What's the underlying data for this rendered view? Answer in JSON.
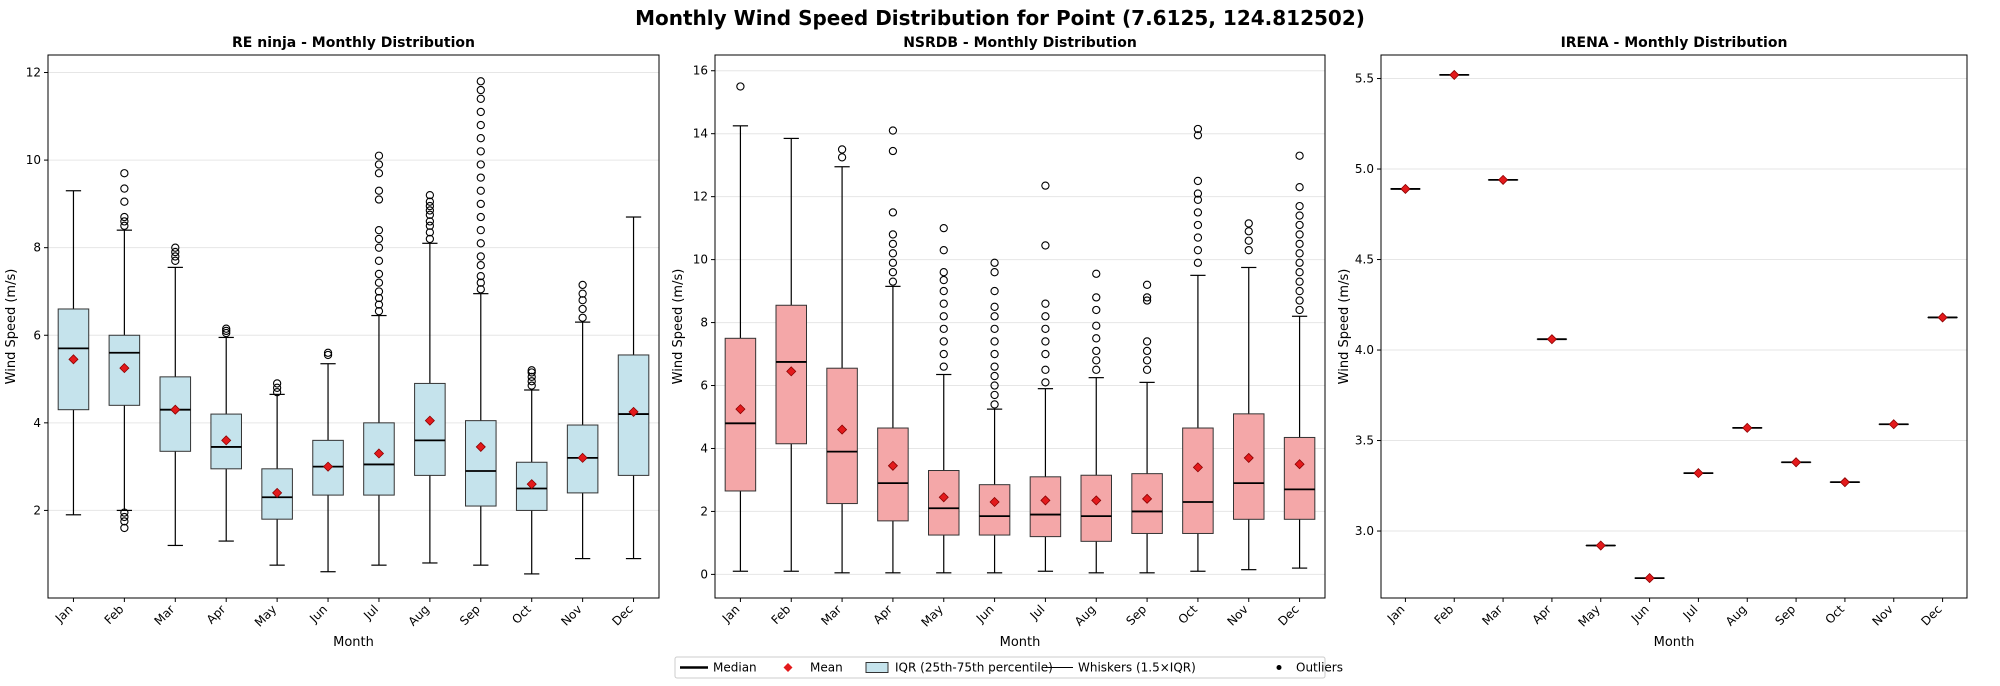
{
  "title": "Monthly Wind Speed Distribution for Point (7.6125, 124.812502)",
  "colors": {
    "re_box": "#c5e3ec",
    "nsrdb_box": "#f4a7a8",
    "mean": "#e31a1c",
    "grid": "#e6e6e6"
  },
  "legend": {
    "items": [
      {
        "label": "Median",
        "kind": "median-line"
      },
      {
        "label": "Mean",
        "kind": "mean-diamond"
      },
      {
        "label": "IQR (25th-75th percentile)",
        "kind": "iqr-box"
      },
      {
        "label": "Whiskers (1.5×IQR)",
        "kind": "whisker-line"
      },
      {
        "label": "Outliers",
        "kind": "outlier-dot"
      }
    ]
  },
  "chart_data": [
    {
      "type": "box",
      "title": "RE ninja - Monthly Distribution",
      "xlabel": "Month",
      "ylabel": "Wind Speed (m/s)",
      "ylim": [
        0.0,
        12.4
      ],
      "yticks": [
        2,
        4,
        6,
        8,
        10,
        12
      ],
      "ytick_labels": [
        "2",
        "4",
        "6",
        "8",
        "10",
        "12"
      ],
      "categories": [
        "Jan",
        "Feb",
        "Mar",
        "Apr",
        "May",
        "Jun",
        "Jul",
        "Aug",
        "Sep",
        "Oct",
        "Nov",
        "Dec"
      ],
      "boxes": [
        {
          "whislo": 1.9,
          "q1": 4.3,
          "med": 5.7,
          "q3": 6.6,
          "whishi": 9.3,
          "mean": 5.45,
          "fliers": []
        },
        {
          "whislo": 2.0,
          "q1": 4.4,
          "med": 5.6,
          "q3": 6.0,
          "whishi": 8.4,
          "mean": 5.25,
          "fliers": [
            1.6,
            1.75,
            1.85,
            1.95,
            8.5,
            8.6,
            8.7,
            9.05,
            9.35,
            9.7
          ]
        },
        {
          "whislo": 1.2,
          "q1": 3.35,
          "med": 4.3,
          "q3": 5.05,
          "whishi": 7.55,
          "mean": 4.3,
          "fliers": [
            7.7,
            7.8,
            7.9,
            8.0
          ]
        },
        {
          "whislo": 1.3,
          "q1": 2.95,
          "med": 3.45,
          "q3": 4.2,
          "whishi": 5.95,
          "mean": 3.6,
          "fliers": [
            6.05,
            6.1,
            6.15
          ]
        },
        {
          "whislo": 0.75,
          "q1": 1.8,
          "med": 2.3,
          "q3": 2.95,
          "whishi": 4.65,
          "mean": 2.4,
          "fliers": [
            4.7,
            4.8,
            4.9
          ]
        },
        {
          "whislo": 0.6,
          "q1": 2.35,
          "med": 3.0,
          "q3": 3.6,
          "whishi": 5.35,
          "mean": 3.0,
          "fliers": [
            5.55,
            5.6
          ]
        },
        {
          "whislo": 0.75,
          "q1": 2.35,
          "med": 3.05,
          "q3": 4.0,
          "whishi": 6.45,
          "mean": 3.3,
          "fliers": [
            6.55,
            6.7,
            6.85,
            7.0,
            7.2,
            7.4,
            7.7,
            8.0,
            8.2,
            8.4,
            9.1,
            9.3,
            9.7,
            9.9,
            10.1
          ]
        },
        {
          "whislo": 0.8,
          "q1": 2.8,
          "med": 3.6,
          "q3": 4.9,
          "whishi": 8.1,
          "mean": 4.05,
          "fliers": [
            8.2,
            8.35,
            8.5,
            8.6,
            8.75,
            8.85,
            8.95,
            9.05,
            9.2
          ]
        },
        {
          "whislo": 0.75,
          "q1": 2.1,
          "med": 2.9,
          "q3": 4.05,
          "whishi": 6.95,
          "mean": 3.45,
          "fliers": [
            7.05,
            7.2,
            7.35,
            7.6,
            7.8,
            8.1,
            8.4,
            8.7,
            9.0,
            9.3,
            9.6,
            9.9,
            10.2,
            10.5,
            10.8,
            11.1,
            11.4,
            11.6,
            11.8
          ]
        },
        {
          "whislo": 0.55,
          "q1": 2.0,
          "med": 2.5,
          "q3": 3.1,
          "whishi": 4.75,
          "mean": 2.6,
          "fliers": [
            4.85,
            4.95,
            5.05,
            5.15,
            5.2
          ]
        },
        {
          "whislo": 0.9,
          "q1": 2.4,
          "med": 3.2,
          "q3": 3.95,
          "whishi": 6.3,
          "mean": 3.2,
          "fliers": [
            6.4,
            6.6,
            6.8,
            6.95,
            7.15
          ]
        },
        {
          "whislo": 0.9,
          "q1": 2.8,
          "med": 4.2,
          "q3": 5.55,
          "whishi": 8.7,
          "mean": 4.25,
          "fliers": []
        }
      ]
    },
    {
      "type": "box",
      "title": "NSRDB - Monthly Distribution",
      "xlabel": "Month",
      "ylabel": "Wind Speed (m/s)",
      "ylim": [
        -0.75,
        16.5
      ],
      "yticks": [
        0,
        2,
        4,
        6,
        8,
        10,
        12,
        14,
        16
      ],
      "ytick_labels": [
        "0",
        "2",
        "4",
        "6",
        "8",
        "10",
        "12",
        "14",
        "16"
      ],
      "categories": [
        "Jan",
        "Feb",
        "Mar",
        "Apr",
        "May",
        "Jun",
        "Jul",
        "Aug",
        "Sep",
        "Oct",
        "Nov",
        "Dec"
      ],
      "boxes": [
        {
          "whislo": 0.1,
          "q1": 2.65,
          "med": 4.8,
          "q3": 7.5,
          "whishi": 14.25,
          "mean": 5.25,
          "fliers": [
            15.5
          ]
        },
        {
          "whislo": 0.1,
          "q1": 4.15,
          "med": 6.75,
          "q3": 8.55,
          "whishi": 13.85,
          "mean": 6.45,
          "fliers": []
        },
        {
          "whislo": 0.05,
          "q1": 2.25,
          "med": 3.9,
          "q3": 6.55,
          "whishi": 12.95,
          "mean": 4.6,
          "fliers": [
            13.25,
            13.5
          ]
        },
        {
          "whislo": 0.05,
          "q1": 1.7,
          "med": 2.9,
          "q3": 4.65,
          "whishi": 9.15,
          "mean": 3.45,
          "fliers": [
            9.3,
            9.6,
            9.9,
            10.2,
            10.5,
            10.8,
            11.5,
            13.45,
            14.1
          ]
        },
        {
          "whislo": 0.05,
          "q1": 1.25,
          "med": 2.1,
          "q3": 3.3,
          "whishi": 6.35,
          "mean": 2.45,
          "fliers": [
            6.6,
            7.0,
            7.4,
            7.8,
            8.2,
            8.6,
            9.0,
            9.35,
            9.6,
            10.3,
            11.0
          ]
        },
        {
          "whislo": 0.05,
          "q1": 1.25,
          "med": 1.85,
          "q3": 2.85,
          "whishi": 5.25,
          "mean": 2.3,
          "fliers": [
            5.4,
            5.7,
            6.0,
            6.3,
            6.6,
            7.0,
            7.4,
            7.8,
            8.2,
            8.5,
            9.0,
            9.6,
            9.9
          ]
        },
        {
          "whislo": 0.1,
          "q1": 1.2,
          "med": 1.9,
          "q3": 3.1,
          "whishi": 5.9,
          "mean": 2.35,
          "fliers": [
            6.1,
            6.5,
            7.0,
            7.4,
            7.8,
            8.2,
            8.6,
            10.45,
            12.35
          ]
        },
        {
          "whislo": 0.05,
          "q1": 1.05,
          "med": 1.85,
          "q3": 3.15,
          "whishi": 6.25,
          "mean": 2.35,
          "fliers": [
            6.5,
            6.8,
            7.1,
            7.5,
            7.9,
            8.4,
            8.8,
            9.55
          ]
        },
        {
          "whislo": 0.05,
          "q1": 1.3,
          "med": 2.0,
          "q3": 3.2,
          "whishi": 6.1,
          "mean": 2.4,
          "fliers": [
            6.5,
            6.8,
            7.1,
            7.4,
            8.7,
            8.8,
            9.2
          ]
        },
        {
          "whislo": 0.1,
          "q1": 1.3,
          "med": 2.3,
          "q3": 4.65,
          "whishi": 9.5,
          "mean": 3.4,
          "fliers": [
            9.9,
            10.3,
            10.7,
            11.1,
            11.5,
            11.9,
            12.1,
            12.5,
            13.95,
            14.15
          ]
        },
        {
          "whislo": 0.15,
          "q1": 1.75,
          "med": 2.9,
          "q3": 5.1,
          "whishi": 9.75,
          "mean": 3.7,
          "fliers": [
            10.3,
            10.6,
            10.9,
            11.15
          ]
        },
        {
          "whislo": 0.2,
          "q1": 1.75,
          "med": 2.7,
          "q3": 4.35,
          "whishi": 8.2,
          "mean": 3.5,
          "fliers": [
            8.4,
            8.7,
            9.0,
            9.3,
            9.6,
            9.9,
            10.2,
            10.5,
            10.8,
            11.1,
            11.4,
            11.7,
            12.3,
            13.3
          ]
        }
      ]
    },
    {
      "type": "box",
      "title": "IRENA - Monthly Distribution",
      "xlabel": "Month",
      "ylabel": "Wind Speed (m/s)",
      "ylim": [
        2.63,
        5.63
      ],
      "yticks": [
        3.0,
        3.5,
        4.0,
        4.5,
        5.0,
        5.5
      ],
      "ytick_labels": [
        "3.0",
        "3.5",
        "4.0",
        "4.5",
        "5.0",
        "5.5"
      ],
      "categories": [
        "Jan",
        "Feb",
        "Mar",
        "Apr",
        "May",
        "Jun",
        "Jul",
        "Aug",
        "Sep",
        "Oct",
        "Nov",
        "Dec"
      ],
      "boxes": [
        {
          "whislo": 4.89,
          "q1": 4.89,
          "med": 4.89,
          "q3": 4.89,
          "whishi": 4.89,
          "mean": 4.89,
          "fliers": []
        },
        {
          "whislo": 5.52,
          "q1": 5.52,
          "med": 5.52,
          "q3": 5.52,
          "whishi": 5.52,
          "mean": 5.52,
          "fliers": []
        },
        {
          "whislo": 4.94,
          "q1": 4.94,
          "med": 4.94,
          "q3": 4.94,
          "whishi": 4.94,
          "mean": 4.94,
          "fliers": []
        },
        {
          "whislo": 4.06,
          "q1": 4.06,
          "med": 4.06,
          "q3": 4.06,
          "whishi": 4.06,
          "mean": 4.06,
          "fliers": []
        },
        {
          "whislo": 2.92,
          "q1": 2.92,
          "med": 2.92,
          "q3": 2.92,
          "whishi": 2.92,
          "mean": 2.92,
          "fliers": []
        },
        {
          "whislo": 2.74,
          "q1": 2.74,
          "med": 2.74,
          "q3": 2.74,
          "whishi": 2.74,
          "mean": 2.74,
          "fliers": []
        },
        {
          "whislo": 3.32,
          "q1": 3.32,
          "med": 3.32,
          "q3": 3.32,
          "whishi": 3.32,
          "mean": 3.32,
          "fliers": []
        },
        {
          "whislo": 3.57,
          "q1": 3.57,
          "med": 3.57,
          "q3": 3.57,
          "whishi": 3.57,
          "mean": 3.57,
          "fliers": []
        },
        {
          "whislo": 3.38,
          "q1": 3.38,
          "med": 3.38,
          "q3": 3.38,
          "whishi": 3.38,
          "mean": 3.38,
          "fliers": []
        },
        {
          "whislo": 3.27,
          "q1": 3.27,
          "med": 3.27,
          "q3": 3.27,
          "whishi": 3.27,
          "mean": 3.27,
          "fliers": []
        },
        {
          "whislo": 3.59,
          "q1": 3.59,
          "med": 3.59,
          "q3": 3.59,
          "whishi": 3.59,
          "mean": 3.59,
          "fliers": []
        },
        {
          "whislo": 4.18,
          "q1": 4.18,
          "med": 4.18,
          "q3": 4.18,
          "whishi": 4.18,
          "mean": 4.18,
          "fliers": []
        }
      ]
    }
  ]
}
